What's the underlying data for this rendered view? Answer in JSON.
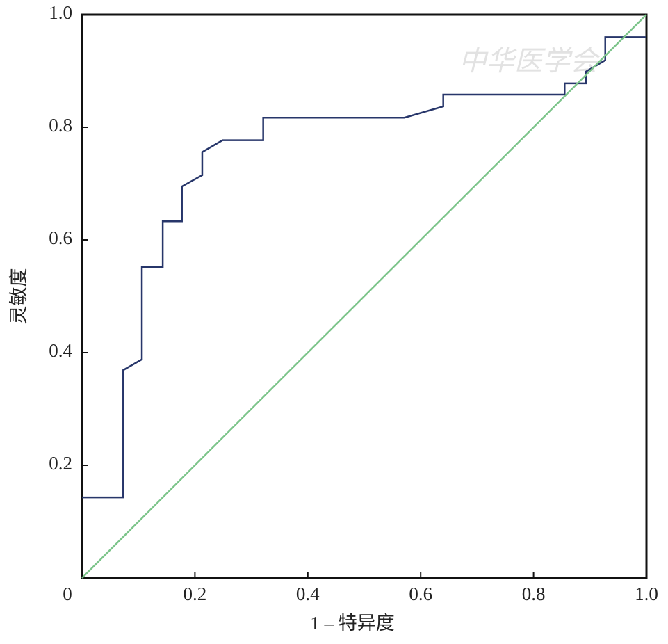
{
  "chart_data": {
    "type": "line",
    "xlabel": "1 – 特异度",
    "ylabel": "灵敏度",
    "watermark": "中华医学会",
    "xlim": [
      0,
      1
    ],
    "ylim": [
      0,
      1
    ],
    "xticks": [
      0,
      0.2,
      0.4,
      0.6,
      0.8,
      {
        "value": 1,
        "label": "1.0"
      }
    ],
    "yticks": [
      0.2,
      0.4,
      0.6,
      0.8,
      {
        "value": 1,
        "label": "1.0"
      }
    ],
    "series": [
      {
        "color": "#27366a",
        "x": [
          0,
          0.073,
          0.073,
          0.106,
          0.106,
          0.143,
          0.143,
          0.177,
          0.177,
          0.213,
          0.213,
          0.249,
          0.321,
          0.321,
          0.571,
          0.64,
          0.64,
          0.855,
          0.855,
          0.893,
          0.893,
          0.927,
          0.927,
          1.0
        ],
        "values": [
          0.143,
          0.143,
          0.369,
          0.388,
          0.552,
          0.552,
          0.633,
          0.633,
          0.695,
          0.715,
          0.756,
          0.777,
          0.777,
          0.817,
          0.817,
          0.837,
          0.858,
          0.858,
          0.878,
          0.878,
          0.899,
          0.919,
          0.96,
          0.96
        ]
      },
      {
        "color": "#7cc48a",
        "x": [
          0,
          1
        ],
        "values": [
          0,
          1
        ]
      }
    ]
  }
}
